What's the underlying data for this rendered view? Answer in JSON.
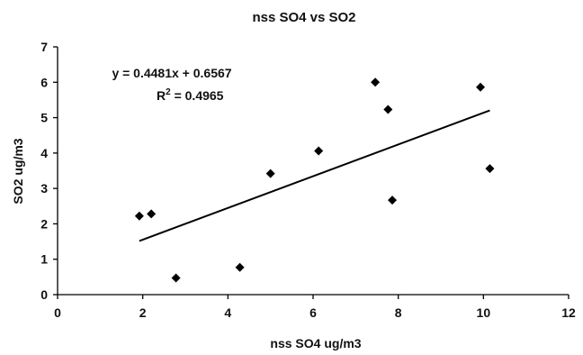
{
  "chart_data": {
    "type": "scatter",
    "title": "nss SO4 vs SO2",
    "xlabel": "nss SO4 ug/m3",
    "ylabel": "SO2 ug/m3",
    "xlim": [
      0,
      12
    ],
    "ylim": [
      0,
      7
    ],
    "x_ticks": [
      "0",
      "2",
      "4",
      "6",
      "8",
      "10",
      "12"
    ],
    "y_ticks": [
      "0",
      "1",
      "2",
      "3",
      "4",
      "5",
      "6",
      "7"
    ],
    "grid": false,
    "legend": "none",
    "points": [
      {
        "x": 1.92,
        "y": 2.22
      },
      {
        "x": 2.2,
        "y": 2.28
      },
      {
        "x": 2.78,
        "y": 0.47
      },
      {
        "x": 4.28,
        "y": 0.77
      },
      {
        "x": 5.0,
        "y": 3.42
      },
      {
        "x": 6.13,
        "y": 4.06
      },
      {
        "x": 7.46,
        "y": 6.0
      },
      {
        "x": 7.76,
        "y": 5.23
      },
      {
        "x": 7.86,
        "y": 2.67
      },
      {
        "x": 9.93,
        "y": 5.86
      },
      {
        "x": 10.15,
        "y": 3.56
      }
    ],
    "trendline": {
      "type": "linear",
      "slope": 0.4481,
      "intercept": 0.6567,
      "x_range": [
        1.92,
        10.15
      ],
      "equation_text": "y = 0.4481x + 0.6567",
      "r2_prefix": "R",
      "r2_sup": "2",
      "r2_value": " = 0.4965"
    },
    "colors": {
      "marker": "#000000",
      "line": "#000000",
      "axis": "#000000"
    }
  }
}
